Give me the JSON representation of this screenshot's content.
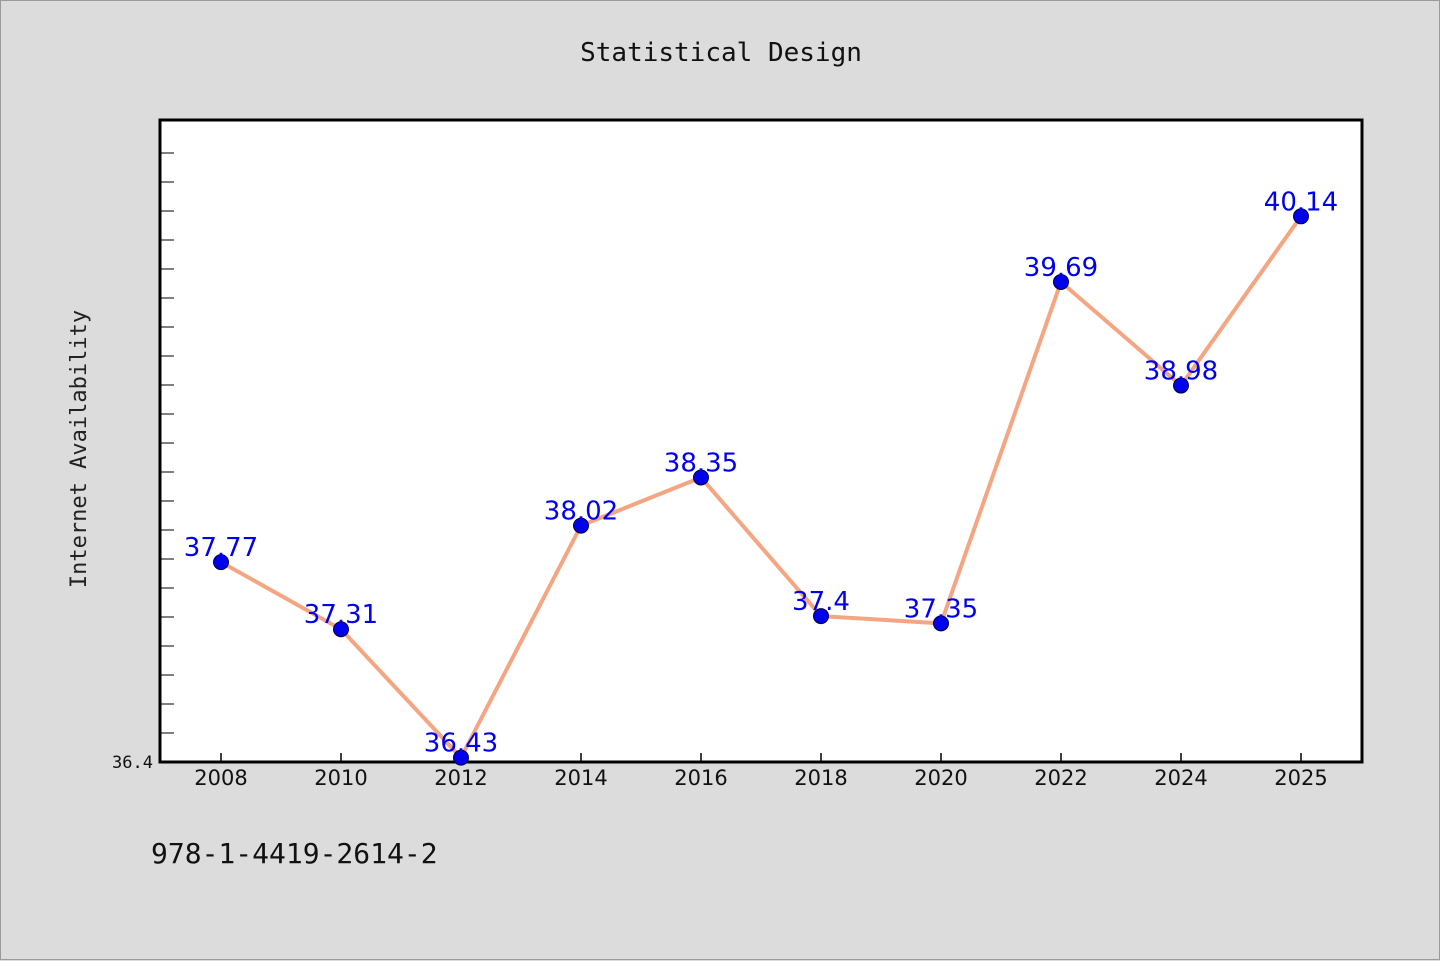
{
  "chart_data": {
    "type": "line",
    "title": "Statistical Design",
    "ylabel": "Internet Availability",
    "xlabel": "",
    "categories": [
      "2008",
      "2010",
      "2012",
      "2014",
      "2016",
      "2018",
      "2020",
      "2022",
      "2024",
      "2025"
    ],
    "values": [
      37.77,
      37.31,
      36.43,
      38.02,
      38.35,
      37.4,
      37.35,
      39.69,
      38.98,
      40.14
    ],
    "data_labels": [
      "37.77",
      "37.31",
      "36.43",
      "38.02",
      "38.35",
      "37.4",
      "37.35",
      "39.69",
      "38.98",
      "40.14"
    ],
    "ylim": [
      36.4,
      40.8
    ],
    "y_min_label": "36.4",
    "grid": false,
    "line_color": "#f4a582",
    "marker_color": "#0000ee",
    "label_color": "#0000ee"
  },
  "footnote": "978-1-4419-2614-2"
}
